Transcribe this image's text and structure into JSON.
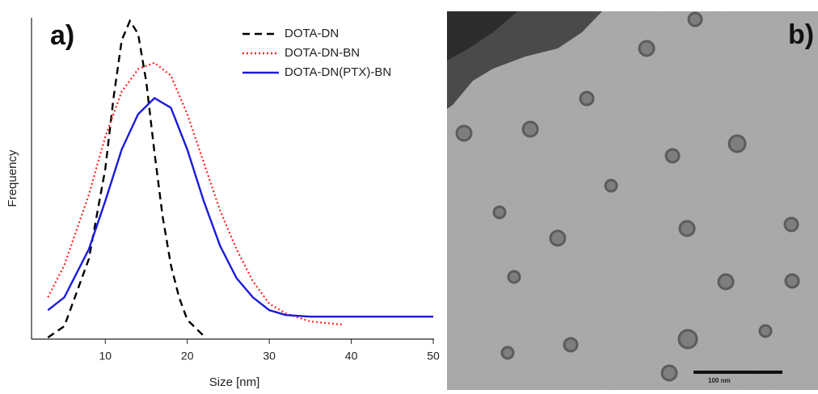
{
  "chart_data": {
    "type": "line",
    "panel_label": "a)",
    "x_label": "Size [nm]",
    "y_label": "Frequency",
    "xlim": [
      1,
      50
    ],
    "xticks": [
      10,
      20,
      30,
      40,
      50
    ],
    "ylim": [
      0,
      1
    ],
    "legend": "upper right",
    "series": [
      {
        "name": "DOTA-DN",
        "color": "#000000",
        "style": "dashed",
        "x": [
          3,
          5,
          8,
          10,
          11,
          12,
          13,
          14,
          15,
          16,
          17,
          18,
          19,
          20,
          22
        ],
        "values": [
          0.005,
          0.04,
          0.25,
          0.53,
          0.75,
          0.93,
          0.99,
          0.95,
          0.8,
          0.58,
          0.38,
          0.23,
          0.13,
          0.06,
          0.01
        ]
      },
      {
        "name": "DOTA-DN-BN",
        "color": "#ff2020",
        "style": "dotted",
        "x": [
          3,
          5,
          8,
          10,
          12,
          14,
          16,
          18,
          20,
          22,
          24,
          26,
          28,
          30,
          32,
          35,
          39
        ],
        "values": [
          0.13,
          0.23,
          0.45,
          0.63,
          0.77,
          0.84,
          0.86,
          0.82,
          0.7,
          0.55,
          0.4,
          0.28,
          0.18,
          0.11,
          0.08,
          0.055,
          0.045
        ]
      },
      {
        "name": "DOTA-DN(PTX)-BN",
        "color": "#1a1adc",
        "style": "solid",
        "x": [
          3,
          5,
          8,
          10,
          12,
          14,
          16,
          18,
          20,
          22,
          24,
          26,
          28,
          30,
          32,
          35,
          50
        ],
        "values": [
          0.09,
          0.13,
          0.28,
          0.43,
          0.59,
          0.7,
          0.75,
          0.72,
          0.59,
          0.43,
          0.29,
          0.19,
          0.13,
          0.09,
          0.075,
          0.07,
          0.07
        ]
      }
    ]
  },
  "panel_b": {
    "label": "b)",
    "scale_bar": "100 nm"
  }
}
